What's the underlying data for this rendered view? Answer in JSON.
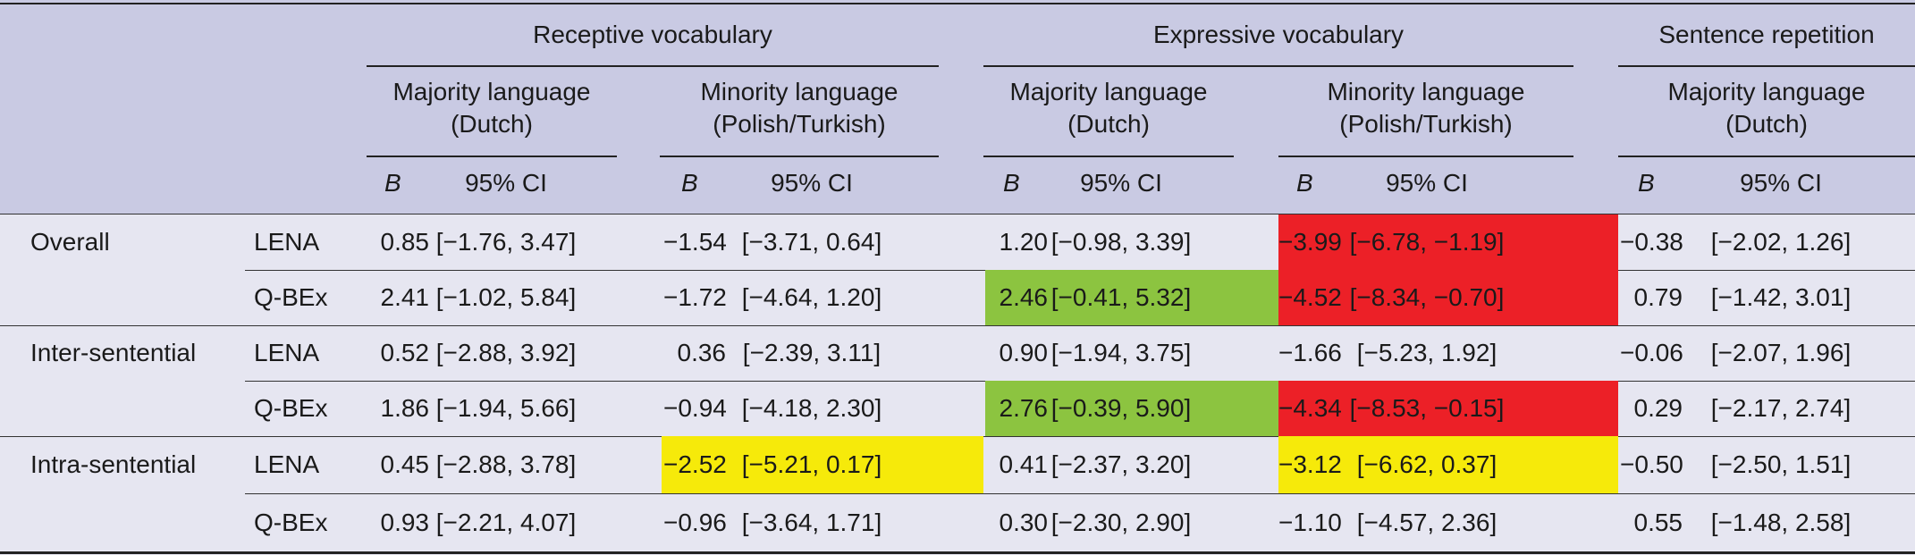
{
  "header": {
    "groups": [
      {
        "title": "Receptive vocabulary"
      },
      {
        "title": "Expressive vocabulary"
      },
      {
        "title": "Sentence repetition"
      }
    ],
    "subgroups": [
      {
        "line1": "Majority language",
        "line2": "(Dutch)"
      },
      {
        "line1": "Minority language",
        "line2": "(Polish/Turkish)"
      },
      {
        "line1": "Majority language",
        "line2": "(Dutch)"
      },
      {
        "line1": "Minority language",
        "line2": "(Polish/Turkish)"
      },
      {
        "line1": "Majority language",
        "line2": "(Dutch)"
      }
    ],
    "b_label": "B",
    "ci_label": "95% CI"
  },
  "highlight_colors": {
    "green": "#8cc440",
    "red": "#ec2027",
    "yellow": "#f6ea0a"
  },
  "rows": [
    {
      "category": "Overall",
      "measure": "LENA",
      "cells": [
        {
          "b": "0.85",
          "ci": "[−1.76, 3.47]"
        },
        {
          "b": "−1.54",
          "ci": "[−3.71, 0.64]"
        },
        {
          "b": "1.20",
          "ci": "[−0.98, 3.39]"
        },
        {
          "b": "−3.99",
          "ci": "[−6.78, −1.19]",
          "hl": "red"
        },
        {
          "b": "−0.38",
          "ci": "[−2.02, 1.26]"
        }
      ]
    },
    {
      "category": "",
      "measure": "Q-BEx",
      "cells": [
        {
          "b": "2.41",
          "ci": "[−1.02, 5.84]"
        },
        {
          "b": "−1.72",
          "ci": "[−4.64, 1.20]"
        },
        {
          "b": "2.46",
          "ci": "[−0.41, 5.32]",
          "hl": "green"
        },
        {
          "b": "−4.52",
          "ci": "[−8.34, −0.70]",
          "hl": "red"
        },
        {
          "b": "0.79",
          "ci": "[−1.42, 3.01]"
        }
      ]
    },
    {
      "category": "Inter-sentential",
      "measure": "LENA",
      "cells": [
        {
          "b": "0.52",
          "ci": "[−2.88, 3.92]"
        },
        {
          "b": "0.36",
          "ci": "[−2.39, 3.11]"
        },
        {
          "b": "0.90",
          "ci": "[−1.94, 3.75]"
        },
        {
          "b": "−1.66",
          "ci": "[−5.23, 1.92]"
        },
        {
          "b": "−0.06",
          "ci": "[−2.07, 1.96]"
        }
      ]
    },
    {
      "category": "",
      "measure": "Q-BEx",
      "cells": [
        {
          "b": "1.86",
          "ci": "[−1.94, 5.66]"
        },
        {
          "b": "−0.94",
          "ci": "[−4.18, 2.30]"
        },
        {
          "b": "2.76",
          "ci": "[−0.39, 5.90]",
          "hl": "green"
        },
        {
          "b": "−4.34",
          "ci": "[−8.53, −0.15]",
          "hl": "red"
        },
        {
          "b": "0.29",
          "ci": "[−2.17, 2.74]"
        }
      ]
    },
    {
      "category": "Intra-sentential",
      "measure": "LENA",
      "cells": [
        {
          "b": "0.45",
          "ci": "[−2.88, 3.78]"
        },
        {
          "b": "−2.52",
          "ci": "[−5.21, 0.17]",
          "hl": "yellow"
        },
        {
          "b": "0.41",
          "ci": "[−2.37, 3.20]"
        },
        {
          "b": "−3.12",
          "ci": "[−6.62, 0.37]",
          "hl": "yellow"
        },
        {
          "b": "−0.50",
          "ci": "[−2.50, 1.51]"
        }
      ]
    },
    {
      "category": "",
      "measure": "Q-BEx",
      "cells": [
        {
          "b": "0.93",
          "ci": "[−2.21, 4.07]"
        },
        {
          "b": "−0.96",
          "ci": "[−3.64, 1.71]"
        },
        {
          "b": "0.30",
          "ci": "[−2.30, 2.90]"
        },
        {
          "b": "−1.10",
          "ci": "[−4.57, 2.36]"
        },
        {
          "b": "0.55",
          "ci": "[−1.48, 2.58]"
        }
      ]
    }
  ]
}
